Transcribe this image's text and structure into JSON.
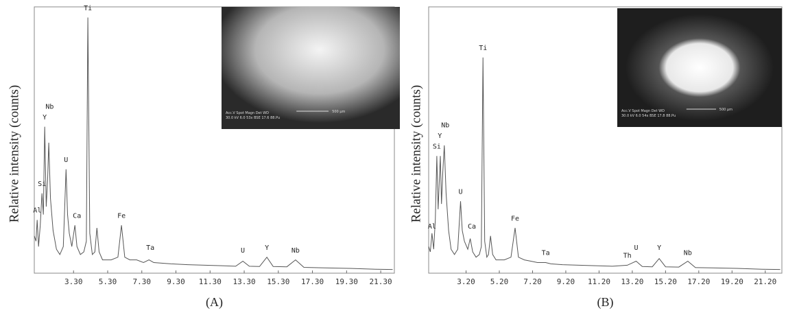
{
  "chart_data": [
    {
      "type": "line",
      "panel_label": "(A)",
      "y_label": "Relative intensity (counts)",
      "x": [
        1.0,
        1.1,
        1.17,
        1.25,
        1.35,
        1.45,
        1.53,
        1.61,
        1.7,
        1.78,
        1.85,
        1.95,
        2.1,
        2.3,
        2.5,
        2.7,
        2.86,
        2.95,
        3.05,
        3.2,
        3.38,
        3.5,
        3.7,
        3.9,
        4.05,
        4.14,
        4.25,
        4.4,
        4.55,
        4.67,
        4.8,
        5.0,
        5.5,
        5.9,
        6.11,
        6.3,
        6.6,
        7.0,
        7.4,
        7.72,
        8.0,
        9.0,
        10.0,
        11.0,
        12.0,
        12.8,
        13.22,
        13.6,
        14.2,
        14.63,
        15.0,
        15.8,
        16.31,
        16.8,
        18.0,
        19.5,
        21.0,
        22.0
      ],
      "series": [
        {
          "color": "#555555",
          "values": [
            14,
            12,
            20,
            10,
            18,
            30,
            22,
            55,
            25,
            35,
            49,
            28,
            16,
            9,
            7,
            10,
            39,
            22,
            15,
            10,
            18,
            10,
            7,
            8,
            12,
            96,
            15,
            7,
            8,
            17,
            8,
            5,
            5,
            6,
            18,
            6,
            5,
            5,
            4,
            5,
            4,
            3.5,
            3.2,
            3,
            2.8,
            2.6,
            4.5,
            2.6,
            2.5,
            6,
            2.5,
            2.4,
            5,
            2.2,
            2,
            1.8,
            1.5,
            1.4
          ]
        }
      ],
      "xlim": [
        1.0,
        22.1
      ],
      "ylim": [
        0,
        100
      ],
      "xticks": [
        {
          "value": 3.3,
          "label": "3.30"
        },
        {
          "value": 5.3,
          "label": "5.30"
        },
        {
          "value": 7.3,
          "label": "7.30"
        },
        {
          "value": 9.3,
          "label": "9.30"
        },
        {
          "value": 11.3,
          "label": "11.30"
        },
        {
          "value": 13.3,
          "label": "13.30"
        },
        {
          "value": 15.3,
          "label": "15.30"
        },
        {
          "value": 17.3,
          "label": "17.30"
        },
        {
          "value": 19.3,
          "label": "19.30"
        },
        {
          "value": 21.3,
          "label": "21.30"
        }
      ],
      "annotations": [
        {
          "text": "Al",
          "x": 1.17,
          "y": 22
        },
        {
          "text": "Si",
          "x": 1.45,
          "y": 32
        },
        {
          "text": "Y",
          "x": 1.61,
          "y": 57
        },
        {
          "text": "Nb",
          "x": 1.9,
          "y": 61
        },
        {
          "text": "U",
          "x": 2.86,
          "y": 41
        },
        {
          "text": "Ca",
          "x": 3.5,
          "y": 20
        },
        {
          "text": "Ti",
          "x": 4.14,
          "y": 98
        },
        {
          "text": "Fe",
          "x": 6.11,
          "y": 20
        },
        {
          "text": "Ta",
          "x": 7.8,
          "y": 8
        },
        {
          "text": "U",
          "x": 13.22,
          "y": 7
        },
        {
          "text": "Y",
          "x": 14.63,
          "y": 8
        },
        {
          "text": "Nb",
          "x": 16.31,
          "y": 7
        }
      ],
      "inset": {
        "text": [
          "Acc.V  Spot Magn   Det  WD",
          "30.0 kV 6.0  53x   BSE 17.6 88.Pu",
          "500 μm"
        ]
      }
    },
    {
      "type": "line",
      "panel_label": "(B)",
      "y_label": "Relative intensity (counts)",
      "x": [
        0.95,
        1.05,
        1.15,
        1.25,
        1.35,
        1.44,
        1.52,
        1.65,
        1.72,
        1.8,
        1.89,
        2.0,
        2.15,
        2.3,
        2.5,
        2.7,
        2.87,
        2.97,
        3.1,
        3.3,
        3.45,
        3.6,
        3.8,
        4.0,
        4.12,
        4.22,
        4.32,
        4.45,
        4.55,
        4.67,
        4.8,
        5.0,
        5.5,
        5.9,
        6.15,
        6.35,
        6.7,
        7.1,
        7.5,
        7.99,
        8.3,
        9.0,
        10.0,
        11.0,
        12.0,
        12.9,
        13.43,
        13.8,
        14.4,
        14.82,
        15.2,
        16.0,
        16.54,
        17.0,
        18.0,
        19.5,
        21.0,
        22.1
      ],
      "series": [
        {
          "color": "#555555",
          "values": [
            10,
            8,
            15,
            9,
            20,
            44,
            24,
            44,
            26,
            38,
            48,
            30,
            16,
            9,
            7,
            9,
            27,
            16,
            12,
            9,
            13,
            8,
            6,
            7,
            10,
            81,
            12,
            6,
            7,
            14,
            7,
            5,
            5,
            6,
            17,
            6,
            5,
            4.5,
            4,
            4,
            3.5,
            3.2,
            3,
            2.8,
            2.6,
            3,
            4.5,
            2.5,
            2.4,
            5.5,
            2.4,
            2.3,
            4.5,
            2.1,
            2,
            1.8,
            1.5,
            1.4
          ]
        }
      ],
      "xlim": [
        0.95,
        22.2
      ],
      "ylim": [
        0,
        100
      ],
      "xticks": [
        {
          "value": 3.2,
          "label": "3.20"
        },
        {
          "value": 5.2,
          "label": "5.20"
        },
        {
          "value": 7.2,
          "label": "7.20"
        },
        {
          "value": 9.2,
          "label": "9.20"
        },
        {
          "value": 11.2,
          "label": "11.20"
        },
        {
          "value": 13.2,
          "label": "13.20"
        },
        {
          "value": 15.2,
          "label": "15.20"
        },
        {
          "value": 17.2,
          "label": "17.20"
        },
        {
          "value": 19.2,
          "label": "19.20"
        },
        {
          "value": 21.2,
          "label": "21.20"
        }
      ],
      "annotations": [
        {
          "text": "Al",
          "x": 1.15,
          "y": 16
        },
        {
          "text": "Si",
          "x": 1.44,
          "y": 46
        },
        {
          "text": "Y",
          "x": 1.62,
          "y": 50
        },
        {
          "text": "Nb",
          "x": 1.95,
          "y": 54
        },
        {
          "text": "U",
          "x": 2.87,
          "y": 29
        },
        {
          "text": "Ca",
          "x": 3.55,
          "y": 16
        },
        {
          "text": "Ti",
          "x": 4.22,
          "y": 83
        },
        {
          "text": "Fe",
          "x": 6.15,
          "y": 19
        },
        {
          "text": "Ta",
          "x": 7.99,
          "y": 6
        },
        {
          "text": "Th",
          "x": 12.9,
          "y": 5
        },
        {
          "text": "U",
          "x": 13.43,
          "y": 8
        },
        {
          "text": "Y",
          "x": 14.82,
          "y": 8
        },
        {
          "text": "Nb",
          "x": 16.54,
          "y": 6
        }
      ],
      "inset": {
        "text": [
          "Acc.V  Spot Magn   Det  WD",
          "30.0 kV 6.0  54x   BSE 17.8 88.Pu",
          "500 μm"
        ]
      }
    }
  ]
}
